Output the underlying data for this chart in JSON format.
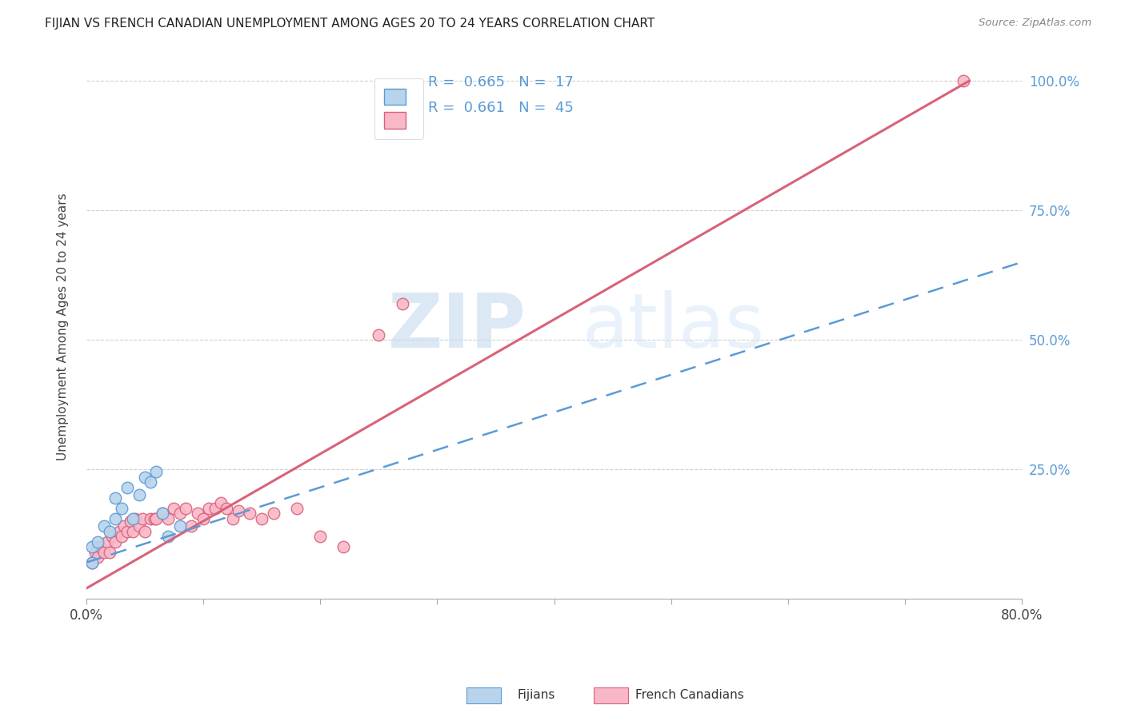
{
  "title": "FIJIAN VS FRENCH CANADIAN UNEMPLOYMENT AMONG AGES 20 TO 24 YEARS CORRELATION CHART",
  "source": "Source: ZipAtlas.com",
  "ylabel": "Unemployment Among Ages 20 to 24 years",
  "xmin": 0.0,
  "xmax": 0.8,
  "ymin": 0.0,
  "ymax": 1.05,
  "x_ticks": [
    0.0,
    0.1,
    0.2,
    0.3,
    0.4,
    0.5,
    0.6,
    0.7,
    0.8
  ],
  "y_tick_positions": [
    0.0,
    0.25,
    0.5,
    0.75,
    1.0
  ],
  "y_tick_labels": [
    "",
    "25.0%",
    "50.0%",
    "75.0%",
    "100.0%"
  ],
  "fijian_color": "#b8d4ec",
  "french_color": "#f9b8c8",
  "fijian_line_color": "#5b9bd5",
  "french_line_color": "#d9627a",
  "fijian_R": 0.665,
  "fijian_N": 17,
  "french_R": 0.661,
  "french_N": 45,
  "watermark_zip": "ZIP",
  "watermark_atlas": "atlas",
  "background_color": "#ffffff",
  "grid_color": "#d0d0d0",
  "fijians_points_x": [
    0.005,
    0.005,
    0.01,
    0.015,
    0.02,
    0.025,
    0.025,
    0.03,
    0.035,
    0.04,
    0.045,
    0.05,
    0.055,
    0.06,
    0.065,
    0.07,
    0.08
  ],
  "fijians_points_y": [
    0.07,
    0.1,
    0.11,
    0.14,
    0.13,
    0.155,
    0.195,
    0.175,
    0.215,
    0.155,
    0.2,
    0.235,
    0.225,
    0.245,
    0.165,
    0.12,
    0.14
  ],
  "french_points_x": [
    0.005,
    0.008,
    0.01,
    0.012,
    0.015,
    0.018,
    0.02,
    0.022,
    0.025,
    0.028,
    0.03,
    0.032,
    0.035,
    0.038,
    0.04,
    0.042,
    0.045,
    0.048,
    0.05,
    0.055,
    0.058,
    0.06,
    0.065,
    0.07,
    0.075,
    0.08,
    0.085,
    0.09,
    0.095,
    0.1,
    0.105,
    0.11,
    0.115,
    0.12,
    0.125,
    0.13,
    0.14,
    0.15,
    0.16,
    0.18,
    0.2,
    0.22,
    0.25,
    0.27,
    0.75
  ],
  "french_points_y": [
    0.07,
    0.09,
    0.08,
    0.1,
    0.09,
    0.11,
    0.09,
    0.12,
    0.11,
    0.13,
    0.12,
    0.14,
    0.13,
    0.15,
    0.13,
    0.155,
    0.14,
    0.155,
    0.13,
    0.155,
    0.155,
    0.155,
    0.165,
    0.155,
    0.175,
    0.165,
    0.175,
    0.14,
    0.165,
    0.155,
    0.175,
    0.175,
    0.185,
    0.175,
    0.155,
    0.17,
    0.165,
    0.155,
    0.165,
    0.175,
    0.12,
    0.1,
    0.51,
    0.57,
    1.0
  ],
  "french_line_x0": 0.0,
  "french_line_y0": 0.02,
  "french_line_x1": 0.755,
  "french_line_y1": 1.0,
  "fijian_line_x0": 0.0,
  "fijian_line_y0": 0.07,
  "fijian_line_x1": 0.8,
  "fijian_line_y1": 0.65
}
